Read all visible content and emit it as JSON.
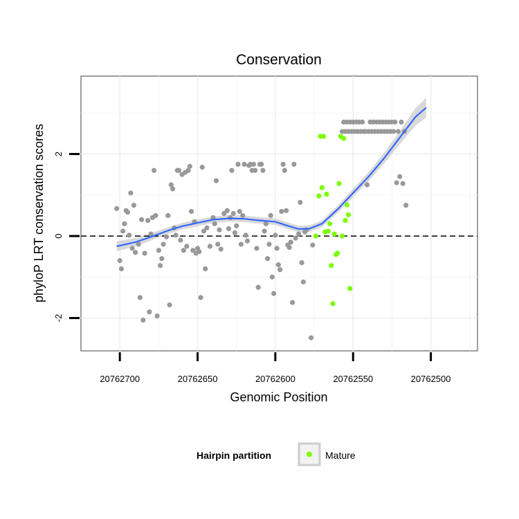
{
  "chart_data": {
    "type": "scatter",
    "title": "Conservation",
    "xlabel": "Genomic Position",
    "ylabel": "phyloP LRT conservation scores",
    "x_reversed": true,
    "xlim": [
      20762725,
      20762470
    ],
    "ylim": [
      -2.8,
      3.9
    ],
    "x_ticks": [
      20762700,
      20762650,
      20762600,
      20762550,
      20762500
    ],
    "x_tick_labels": [
      "20762700",
      "20762650",
      "20762600",
      "20762550",
      "20762500"
    ],
    "y_ticks": [
      -2,
      0,
      2
    ],
    "y_tick_labels": [
      "-2",
      "0",
      "2"
    ],
    "grid": true,
    "reference_line": {
      "y": 0,
      "style": "dashed"
    },
    "legend": {
      "title": "Hairpin partition",
      "position": "bottom",
      "entries": [
        {
          "label": "Mature",
          "color": "#7CFC00"
        }
      ]
    },
    "colors": {
      "other": "#999999",
      "mature": "#7CFC00",
      "smooth": "#3366FF",
      "band": "#cccccc"
    },
    "series": [
      {
        "name": "",
        "color": "#999999",
        "points": [
          [
            20762702,
            0.67
          ],
          [
            20762700,
            -0.6
          ],
          [
            20762699,
            -0.8
          ],
          [
            20762698,
            0.12
          ],
          [
            20762697,
            0.3
          ],
          [
            20762696,
            0.62
          ],
          [
            20762695,
            0.58
          ],
          [
            20762694,
            0.02
          ],
          [
            20762693,
            1.05
          ],
          [
            20762692,
            -0.3
          ],
          [
            20762691,
            0.75
          ],
          [
            20762690,
            -0.4
          ],
          [
            20762688,
            -0.2
          ],
          [
            20762687,
            -1.5
          ],
          [
            20762686,
            0.4
          ],
          [
            20762685,
            -2.05
          ],
          [
            20762684,
            -0.42
          ],
          [
            20762682,
            0.38
          ],
          [
            20762681,
            -1.85
          ],
          [
            20762680,
            0.05
          ],
          [
            20762679,
            0.45
          ],
          [
            20762678,
            1.6
          ],
          [
            20762677,
            0.5
          ],
          [
            20762676,
            -1.95
          ],
          [
            20762675,
            -0.35
          ],
          [
            20762674,
            -0.72
          ],
          [
            20762673,
            -0.55
          ],
          [
            20762672,
            -0.2
          ],
          [
            20762670,
            -0.02
          ],
          [
            20762669,
            0.5
          ],
          [
            20762668,
            -1.68
          ],
          [
            20762667,
            1.25
          ],
          [
            20762666,
            1.15
          ],
          [
            20762665,
            0.2
          ],
          [
            20762664,
            0.02
          ],
          [
            20762663,
            1.6
          ],
          [
            20762662,
            1.6
          ],
          [
            20762661,
            -0.1
          ],
          [
            20762660,
            1.5
          ],
          [
            20762659,
            -0.35
          ],
          [
            20762658,
            1.55
          ],
          [
            20762657,
            -0.25
          ],
          [
            20762656,
            1.6
          ],
          [
            20762655,
            1.7
          ],
          [
            20762654,
            0.6
          ],
          [
            20762653,
            -0.35
          ],
          [
            20762652,
            0.35
          ],
          [
            20762651,
            -0.42
          ],
          [
            20762650,
            -0.3
          ],
          [
            20762649,
            -0.38
          ],
          [
            20762648,
            -1.5
          ],
          [
            20762647,
            1.68
          ],
          [
            20762646,
            0.12
          ],
          [
            20762645,
            -0.8
          ],
          [
            20762644,
            0.2
          ],
          [
            20762642,
            -0.25
          ],
          [
            20762640,
            0.45
          ],
          [
            20762639,
            0.3
          ],
          [
            20762638,
            1.35
          ],
          [
            20762637,
            -0.2
          ],
          [
            20762636,
            0.15
          ],
          [
            20762635,
            -0.32
          ],
          [
            20762633,
            0.55
          ],
          [
            20762631,
            0.62
          ],
          [
            20762630,
            0.18
          ],
          [
            20762629,
            0.45
          ],
          [
            20762628,
            1.6
          ],
          [
            20762627,
            0.55
          ],
          [
            20762626,
            0.08
          ],
          [
            20762625,
            0.25
          ],
          [
            20762624,
            1.75
          ],
          [
            20762623,
            0.6
          ],
          [
            20762622,
            -0.2
          ],
          [
            20762621,
            0.5
          ],
          [
            20762620,
            1.75
          ],
          [
            20762619,
            0.02
          ],
          [
            20762618,
            -0.12
          ],
          [
            20762617,
            1.72
          ],
          [
            20762616,
            1.75
          ],
          [
            20762615,
            1.6
          ],
          [
            20762614,
            1.75
          ],
          [
            20762613,
            1.6
          ],
          [
            20762612,
            -0.3
          ],
          [
            20762611,
            -1.25
          ],
          [
            20762610,
            1.75
          ],
          [
            20762609,
            1.75
          ],
          [
            20762608,
            1.6
          ],
          [
            20762607,
            0.12
          ],
          [
            20762606,
            0.3
          ],
          [
            20762605,
            -0.55
          ],
          [
            20762604,
            -0.2
          ],
          [
            20762603,
            0.5
          ],
          [
            20762602,
            -1.0
          ],
          [
            20762601,
            -1.4
          ],
          [
            20762600,
            0.02
          ],
          [
            20762599,
            -0.3
          ],
          [
            20762598,
            -0.7
          ],
          [
            20762597,
            -0.82
          ],
          [
            20762596,
            0.6
          ],
          [
            20762595,
            1.75
          ],
          [
            20762594,
            1.6
          ],
          [
            20762593,
            0.62
          ],
          [
            20762592,
            -0.22
          ],
          [
            20762591,
            -0.28
          ],
          [
            20762590,
            -0.15
          ],
          [
            20762589,
            -1.62
          ],
          [
            20762588,
            1.75
          ],
          [
            20762587,
            -0.05
          ],
          [
            20762585,
            0.05
          ],
          [
            20762584,
            0.82
          ],
          [
            20762583,
            -0.65
          ],
          [
            20762582,
            -1.12
          ],
          [
            20762581,
            0.1
          ],
          [
            20762580,
            0.15
          ],
          [
            20762577,
            -2.48
          ],
          [
            20762576,
            -0.22
          ],
          [
            20762557,
            2.55
          ],
          [
            20762556,
            2.78
          ],
          [
            20762555,
            2.55
          ],
          [
            20762554,
            2.78
          ],
          [
            20762553,
            2.55
          ],
          [
            20762552,
            2.78
          ],
          [
            20762551,
            2.55
          ],
          [
            20762550,
            2.78
          ],
          [
            20762549,
            2.55
          ],
          [
            20762548,
            2.78
          ],
          [
            20762547,
            2.55
          ],
          [
            20762546,
            2.78
          ],
          [
            20762545,
            2.55
          ],
          [
            20762544,
            2.78
          ],
          [
            20762543,
            2.55
          ],
          [
            20762542,
            2.55
          ],
          [
            20762541,
            1.25
          ],
          [
            20762540,
            2.55
          ],
          [
            20762539,
            2.78
          ],
          [
            20762538,
            2.55
          ],
          [
            20762537,
            2.78
          ],
          [
            20762536,
            2.55
          ],
          [
            20762535,
            2.78
          ],
          [
            20762534,
            2.55
          ],
          [
            20762533,
            2.78
          ],
          [
            20762532,
            2.55
          ],
          [
            20762531,
            2.78
          ],
          [
            20762530,
            2.55
          ],
          [
            20762529,
            2.78
          ],
          [
            20762528,
            2.55
          ],
          [
            20762527,
            2.78
          ],
          [
            20762526,
            2.55
          ],
          [
            20762525,
            2.78
          ],
          [
            20762524,
            2.55
          ],
          [
            20762523,
            2.78
          ],
          [
            20762522,
            1.3
          ],
          [
            20762521,
            2.55
          ],
          [
            20762520,
            1.45
          ],
          [
            20762519,
            2.78
          ],
          [
            20762518,
            1.28
          ],
          [
            20762517,
            2.55
          ],
          [
            20762516,
            0.75
          ]
        ]
      },
      {
        "name": "Mature",
        "color": "#7CFC00",
        "points": [
          [
            20762574,
            0.0
          ],
          [
            20762572,
            0.98
          ],
          [
            20762571,
            2.43
          ],
          [
            20762570,
            1.18
          ],
          [
            20762569,
            2.43
          ],
          [
            20762568,
            0.1
          ],
          [
            20762567,
            1.02
          ],
          [
            20762566,
            0.12
          ],
          [
            20762565,
            0.3
          ],
          [
            20762564,
            -0.72
          ],
          [
            20762563,
            -1.65
          ],
          [
            20762562,
            0.05
          ],
          [
            20762561,
            -0.45
          ],
          [
            20762560,
            -0.42
          ],
          [
            20762559,
            1.28
          ],
          [
            20762558,
            2.43
          ],
          [
            20762557,
            0.0
          ],
          [
            20762556,
            2.38
          ],
          [
            20762555,
            0.38
          ],
          [
            20762554,
            0.76
          ],
          [
            20762553,
            0.52
          ],
          [
            20762552,
            -1.28
          ]
        ]
      }
    ],
    "smooth": {
      "points": [
        [
          20762702,
          -0.25
        ],
        [
          20762690,
          -0.15
        ],
        [
          20762680,
          -0.02
        ],
        [
          20762670,
          0.12
        ],
        [
          20762660,
          0.24
        ],
        [
          20762650,
          0.32
        ],
        [
          20762640,
          0.4
        ],
        [
          20762630,
          0.43
        ],
        [
          20762620,
          0.42
        ],
        [
          20762610,
          0.38
        ],
        [
          20762600,
          0.35
        ],
        [
          20762592,
          0.25
        ],
        [
          20762585,
          0.17
        ],
        [
          20762578,
          0.18
        ],
        [
          20762570,
          0.3
        ],
        [
          20762560,
          0.65
        ],
        [
          20762550,
          1.05
        ],
        [
          20762540,
          1.45
        ],
        [
          20762530,
          1.9
        ],
        [
          20762520,
          2.4
        ],
        [
          20762510,
          2.9
        ],
        [
          20762503,
          3.13
        ]
      ],
      "se": [
        0.12,
        0.1,
        0.09,
        0.08,
        0.08,
        0.08,
        0.08,
        0.08,
        0.08,
        0.08,
        0.08,
        0.08,
        0.08,
        0.08,
        0.08,
        0.09,
        0.1,
        0.11,
        0.13,
        0.16,
        0.21,
        0.24
      ]
    }
  }
}
